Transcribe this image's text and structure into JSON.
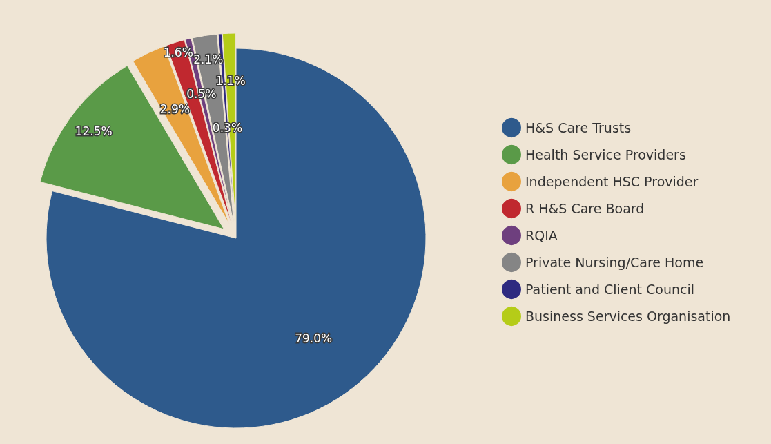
{
  "chart_data": {
    "type": "pie",
    "categories": [
      "H&S Care Trusts",
      "Health Service Providers",
      "Independent HSC Provider",
      "R H&S Care Board",
      "RQIA",
      "Private Nursing/Care Home",
      "Patient and Client Council",
      "Business Services Organisation"
    ],
    "values": [
      79.0,
      12.5,
      2.9,
      1.6,
      0.5,
      2.1,
      0.3,
      1.1
    ],
    "value_labels": [
      "79.0%",
      "12.5%",
      "2.9%",
      "1.6%",
      "0.5%",
      "2.1%",
      "0.3%",
      "1.1%"
    ],
    "colors": [
      "#2e5a8c",
      "#5a9a48",
      "#e8a23e",
      "#c0282f",
      "#6e3f7e",
      "#858585",
      "#2e2a80",
      "#b5cc18"
    ],
    "legend": "right"
  }
}
